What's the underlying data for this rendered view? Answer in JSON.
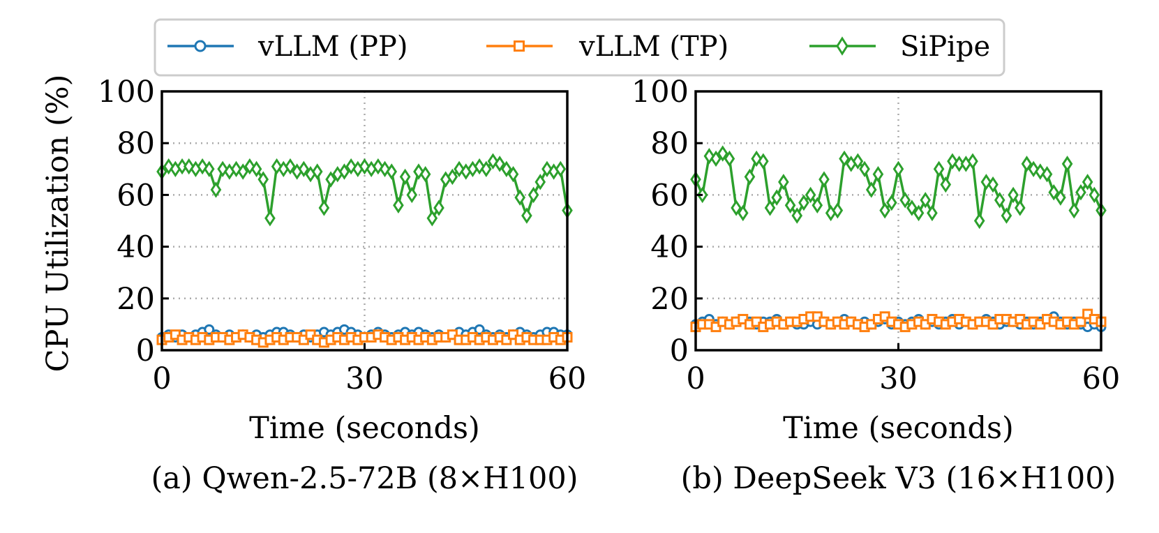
{
  "legend": {
    "entries": [
      {
        "label": "vLLM (PP)",
        "color": "#1f77b4",
        "marker": "circle"
      },
      {
        "label": "vLLM (TP)",
        "color": "#ff7f0e",
        "marker": "square"
      },
      {
        "label": "SiPipe",
        "color": "#2ca02c",
        "marker": "diamond"
      }
    ]
  },
  "chart_data": [
    {
      "type": "line",
      "caption": "(a) Qwen-2.5-72B (8×H100)",
      "xlabel": "Time (seconds)",
      "ylabel": "CPU Utilization (%)",
      "xlim": [
        0,
        60
      ],
      "ylim": [
        0,
        100
      ],
      "xticks": [
        "0",
        "30",
        "60"
      ],
      "yticks": [
        "0",
        "20",
        "40",
        "60",
        "80",
        "100"
      ],
      "grid": true,
      "x": [
        0,
        1,
        2,
        3,
        4,
        5,
        6,
        7,
        8,
        9,
        10,
        11,
        12,
        13,
        14,
        15,
        16,
        17,
        18,
        19,
        20,
        21,
        22,
        23,
        24,
        25,
        26,
        27,
        28,
        29,
        30,
        31,
        32,
        33,
        34,
        35,
        36,
        37,
        38,
        39,
        40,
        41,
        42,
        43,
        44,
        45,
        46,
        47,
        48,
        49,
        50,
        51,
        52,
        53,
        54,
        55,
        56,
        57,
        58,
        59,
        60
      ],
      "series": [
        {
          "name": "vLLM (PP)",
          "values": [
            5,
            6,
            5,
            6,
            5,
            6,
            7,
            8,
            6,
            5,
            6,
            5,
            6,
            5,
            6,
            5,
            6,
            7,
            7,
            6,
            5,
            6,
            5,
            6,
            7,
            6,
            7,
            8,
            7,
            6,
            5,
            6,
            7,
            6,
            5,
            6,
            7,
            6,
            7,
            6,
            5,
            6,
            5,
            6,
            7,
            6,
            7,
            8,
            6,
            5,
            6,
            5,
            6,
            7,
            6,
            5,
            6,
            7,
            7,
            6,
            6
          ]
        },
        {
          "name": "vLLM (TP)",
          "values": [
            4,
            5,
            6,
            4,
            5,
            4,
            5,
            4,
            5,
            5,
            4,
            5,
            6,
            5,
            4,
            3,
            4,
            5,
            4,
            5,
            5,
            4,
            6,
            4,
            3,
            4,
            5,
            4,
            5,
            4,
            5,
            5,
            6,
            5,
            4,
            5,
            4,
            5,
            4,
            5,
            4,
            5,
            5,
            6,
            4,
            4,
            5,
            4,
            5,
            4,
            5,
            4,
            6,
            4,
            5,
            4,
            4,
            4,
            5,
            4,
            5
          ]
        },
        {
          "name": "SiPipe",
          "values": [
            69,
            71,
            70,
            71,
            71,
            70,
            71,
            70,
            62,
            70,
            69,
            70,
            69,
            71,
            70,
            66,
            51,
            71,
            70,
            71,
            69,
            70,
            68,
            69,
            55,
            66,
            68,
            69,
            71,
            70,
            71,
            70,
            71,
            70,
            69,
            56,
            67,
            60,
            69,
            68,
            51,
            55,
            66,
            67,
            70,
            69,
            70,
            71,
            70,
            73,
            72,
            70,
            68,
            59,
            52,
            60,
            65,
            70,
            69,
            70,
            54
          ]
        }
      ]
    },
    {
      "type": "line",
      "caption": "(b) DeepSeek V3 (16×H100)",
      "xlabel": "Time (seconds)",
      "ylabel": "",
      "xlim": [
        0,
        60
      ],
      "ylim": [
        0,
        100
      ],
      "xticks": [
        "0",
        "30",
        "60"
      ],
      "yticks": [
        "0",
        "20",
        "40",
        "60",
        "80",
        "100"
      ],
      "grid": true,
      "x": [
        0,
        1,
        2,
        3,
        4,
        5,
        6,
        7,
        8,
        9,
        10,
        11,
        12,
        13,
        14,
        15,
        16,
        17,
        18,
        19,
        20,
        21,
        22,
        23,
        24,
        25,
        26,
        27,
        28,
        29,
        30,
        31,
        32,
        33,
        34,
        35,
        36,
        37,
        38,
        39,
        40,
        41,
        42,
        43,
        44,
        45,
        46,
        47,
        48,
        49,
        50,
        51,
        52,
        53,
        54,
        55,
        56,
        57,
        58,
        59,
        60
      ],
      "series": [
        {
          "name": "vLLM (PP)",
          "values": [
            10,
            11,
            12,
            10,
            11,
            10,
            11,
            12,
            11,
            10,
            11,
            11,
            12,
            10,
            11,
            10,
            10,
            11,
            10,
            11,
            10,
            11,
            12,
            11,
            10,
            11,
            10,
            11,
            12,
            10,
            11,
            10,
            11,
            12,
            10,
            11,
            10,
            11,
            12,
            10,
            11,
            10,
            11,
            12,
            11,
            10,
            11,
            11,
            10,
            11,
            10,
            11,
            12,
            13,
            11,
            10,
            11,
            10,
            9,
            10,
            9
          ]
        },
        {
          "name": "vLLM (TP)",
          "values": [
            9,
            10,
            10,
            9,
            11,
            10,
            11,
            12,
            10,
            11,
            9,
            10,
            11,
            10,
            11,
            11,
            12,
            13,
            13,
            11,
            10,
            11,
            10,
            11,
            10,
            9,
            10,
            12,
            13,
            11,
            10,
            9,
            10,
            11,
            10,
            12,
            11,
            10,
            11,
            12,
            11,
            10,
            11,
            11,
            10,
            12,
            12,
            11,
            12,
            10,
            11,
            10,
            12,
            11,
            10,
            11,
            10,
            11,
            14,
            12,
            11
          ]
        },
        {
          "name": "SiPipe",
          "values": [
            66,
            60,
            75,
            74,
            76,
            74,
            55,
            53,
            67,
            74,
            73,
            55,
            59,
            65,
            56,
            52,
            57,
            60,
            56,
            66,
            53,
            54,
            74,
            72,
            73,
            70,
            62,
            68,
            54,
            57,
            70,
            58,
            55,
            53,
            58,
            53,
            70,
            64,
            73,
            72,
            72,
            73,
            50,
            65,
            64,
            58,
            52,
            60,
            55,
            72,
            70,
            69,
            68,
            61,
            59,
            72,
            54,
            61,
            65,
            60,
            54
          ]
        }
      ]
    }
  ]
}
